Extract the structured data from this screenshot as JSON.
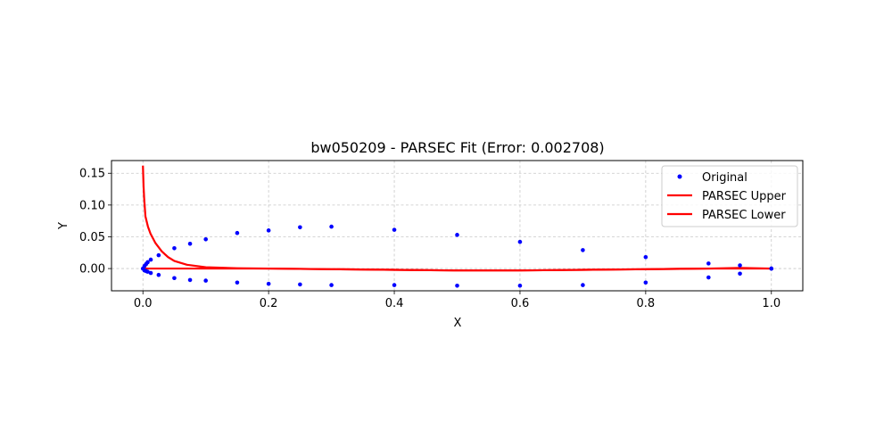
{
  "chart_data": {
    "type": "scatter",
    "title": "bw050209 - PARSEC Fit (Error: 0.002708)",
    "xlabel": "X",
    "ylabel": "Y",
    "xlim": [
      -0.05,
      1.05
    ],
    "ylim": [
      -0.035,
      0.17
    ],
    "xticks": [
      0.0,
      0.2,
      0.4,
      0.6,
      0.8,
      1.0
    ],
    "xtick_labels": [
      "0.0",
      "0.2",
      "0.4",
      "0.6",
      "0.8",
      "1.0"
    ],
    "yticks": [
      0.0,
      0.05,
      0.1,
      0.15
    ],
    "ytick_labels": [
      "0.00",
      "0.05",
      "0.10",
      "0.15"
    ],
    "grid": true,
    "legend_position": "top-right",
    "series": [
      {
        "name": "Original",
        "kind": "scatter",
        "color": "#0000ff",
        "points": [
          [
            1.0,
            0.0
          ],
          [
            0.95,
            0.005
          ],
          [
            0.9,
            0.008
          ],
          [
            0.8,
            0.018
          ],
          [
            0.7,
            0.029
          ],
          [
            0.6,
            0.042
          ],
          [
            0.5,
            0.053
          ],
          [
            0.4,
            0.061
          ],
          [
            0.3,
            0.066
          ],
          [
            0.25,
            0.065
          ],
          [
            0.2,
            0.06
          ],
          [
            0.15,
            0.056
          ],
          [
            0.1,
            0.046
          ],
          [
            0.075,
            0.039
          ],
          [
            0.05,
            0.032
          ],
          [
            0.025,
            0.021
          ],
          [
            0.0125,
            0.014
          ],
          [
            0.0075,
            0.01
          ],
          [
            0.005,
            0.007
          ],
          [
            0.0025,
            0.004
          ],
          [
            0.0,
            0.0
          ],
          [
            0.0025,
            -0.003
          ],
          [
            0.005,
            -0.004
          ],
          [
            0.0075,
            -0.005
          ],
          [
            0.0125,
            -0.007
          ],
          [
            0.025,
            -0.01
          ],
          [
            0.05,
            -0.015
          ],
          [
            0.075,
            -0.018
          ],
          [
            0.1,
            -0.019
          ],
          [
            0.15,
            -0.022
          ],
          [
            0.2,
            -0.024
          ],
          [
            0.25,
            -0.025
          ],
          [
            0.3,
            -0.026
          ],
          [
            0.4,
            -0.026
          ],
          [
            0.5,
            -0.027
          ],
          [
            0.6,
            -0.027
          ],
          [
            0.7,
            -0.026
          ],
          [
            0.8,
            -0.022
          ],
          [
            0.9,
            -0.014
          ],
          [
            0.95,
            -0.008
          ],
          [
            1.0,
            0.0
          ]
        ]
      },
      {
        "name": "PARSEC Upper",
        "kind": "line",
        "color": "#ff0000",
        "points": [
          [
            0.0,
            0.162
          ],
          [
            0.001,
            0.13
          ],
          [
            0.002,
            0.11
          ],
          [
            0.004,
            0.082
          ],
          [
            0.008,
            0.066
          ],
          [
            0.012,
            0.055
          ],
          [
            0.02,
            0.04
          ],
          [
            0.03,
            0.027
          ],
          [
            0.04,
            0.018
          ],
          [
            0.05,
            0.012
          ],
          [
            0.07,
            0.006
          ],
          [
            0.1,
            0.002
          ],
          [
            0.15,
            0.0005
          ],
          [
            0.2,
            0.0
          ],
          [
            0.3,
            -0.001
          ],
          [
            0.4,
            -0.002
          ],
          [
            0.5,
            -0.003
          ],
          [
            0.6,
            -0.003
          ],
          [
            0.7,
            -0.002
          ],
          [
            0.8,
            -0.001
          ],
          [
            0.9,
            0.0
          ],
          [
            1.0,
            0.0
          ]
        ]
      },
      {
        "name": "PARSEC Lower",
        "kind": "line",
        "color": "#ff0000",
        "points": [
          [
            0.0,
            0.0
          ],
          [
            0.1,
            0.0
          ],
          [
            0.2,
            0.0
          ],
          [
            0.3,
            -0.001
          ],
          [
            0.4,
            -0.002
          ],
          [
            0.5,
            -0.003
          ],
          [
            0.6,
            -0.003
          ],
          [
            0.7,
            -0.002
          ],
          [
            0.8,
            -0.001
          ],
          [
            0.9,
            0.0
          ],
          [
            0.95,
            0.001
          ],
          [
            1.0,
            0.0
          ]
        ]
      }
    ]
  }
}
